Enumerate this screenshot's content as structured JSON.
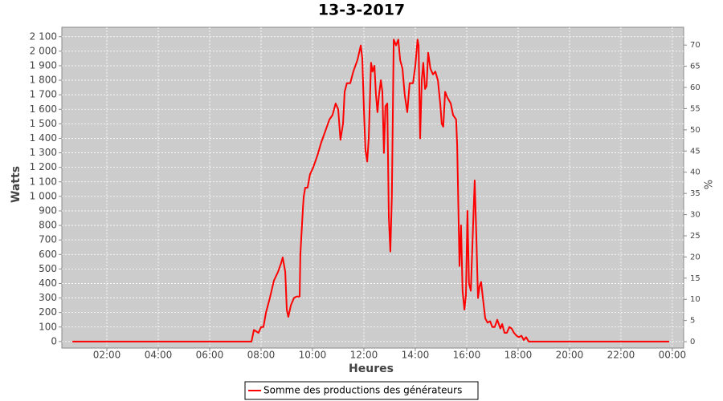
{
  "chart_data": {
    "type": "line",
    "title": "13-3-2017",
    "xlabel": "Heures",
    "ylabel": "Watts",
    "y2label": "%",
    "x": [
      0.66,
      7.63,
      7.72,
      7.9,
      8.0,
      8.09,
      8.19,
      8.34,
      8.5,
      8.66,
      8.78,
      8.84,
      8.94,
      9.0,
      9.06,
      9.16,
      9.28,
      9.38,
      9.5,
      9.53,
      9.63,
      9.66,
      9.72,
      9.81,
      9.9,
      10.03,
      10.19,
      10.34,
      10.5,
      10.66,
      10.78,
      10.9,
      11.0,
      11.09,
      11.19,
      11.25,
      11.34,
      11.47,
      11.59,
      11.75,
      11.88,
      11.94,
      12.0,
      12.06,
      12.13,
      12.19,
      12.28,
      12.34,
      12.41,
      12.47,
      12.53,
      12.59,
      12.66,
      12.72,
      12.78,
      12.84,
      12.91,
      12.97,
      13.03,
      13.09,
      13.16,
      13.25,
      13.34,
      13.41,
      13.5,
      13.59,
      13.69,
      13.78,
      13.91,
      14.0,
      14.09,
      14.13,
      14.19,
      14.25,
      14.31,
      14.38,
      14.44,
      14.5,
      14.59,
      14.69,
      14.78,
      14.88,
      14.97,
      15.03,
      15.09,
      15.16,
      15.25,
      15.38,
      15.47,
      15.59,
      15.63,
      15.72,
      15.78,
      15.84,
      15.91,
      15.97,
      16.03,
      16.09,
      16.16,
      16.25,
      16.31,
      16.38,
      16.44,
      16.5,
      16.56,
      16.63,
      16.72,
      16.81,
      16.91,
      17.0,
      17.09,
      17.19,
      17.25,
      17.31,
      17.38,
      17.47,
      17.56,
      17.66,
      17.75,
      17.84,
      17.94,
      18.03,
      18.13,
      18.22,
      18.31,
      18.41,
      23.88
    ],
    "series": [
      {
        "name": "Somme des productions des  générateurs",
        "color": "#ff0000",
        "values": [
          0,
          0,
          80,
          60,
          100,
          100,
          200,
          300,
          420,
          480,
          540,
          580,
          480,
          220,
          170,
          250,
          300,
          310,
          310,
          600,
          920,
          1000,
          1060,
          1060,
          1150,
          1200,
          1280,
          1370,
          1450,
          1530,
          1560,
          1640,
          1600,
          1390,
          1500,
          1720,
          1780,
          1780,
          1860,
          1940,
          2040,
          1950,
          1600,
          1320,
          1240,
          1400,
          1920,
          1860,
          1900,
          1700,
          1580,
          1700,
          1800,
          1720,
          1300,
          1620,
          1640,
          860,
          620,
          1000,
          2080,
          2040,
          2080,
          1940,
          1880,
          1700,
          1580,
          1780,
          1780,
          1900,
          2080,
          2040,
          1400,
          1800,
          1920,
          1740,
          1760,
          1990,
          1880,
          1840,
          1860,
          1800,
          1640,
          1500,
          1480,
          1720,
          1680,
          1640,
          1560,
          1530,
          1350,
          520,
          800,
          350,
          220,
          320,
          900,
          400,
          350,
          800,
          1110,
          700,
          300,
          380,
          410,
          300,
          160,
          130,
          140,
          100,
          100,
          150,
          120,
          90,
          120,
          60,
          60,
          100,
          90,
          60,
          40,
          30,
          40,
          10,
          30,
          0,
          0
        ]
      }
    ],
    "xlim": [
      0.25,
      24.44
    ],
    "ylim": [
      -45,
      2165
    ],
    "y2lim": [
      -1.5,
      74.2
    ],
    "xticks": [
      {
        "value": 2,
        "label": "02:00"
      },
      {
        "value": 4,
        "label": "04:00"
      },
      {
        "value": 6,
        "label": "06:00"
      },
      {
        "value": 8,
        "label": "08:00"
      },
      {
        "value": 10,
        "label": "10:00"
      },
      {
        "value": 12,
        "label": "12:00"
      },
      {
        "value": 14,
        "label": "14:00"
      },
      {
        "value": 16,
        "label": "16:00"
      },
      {
        "value": 18,
        "label": "18:00"
      },
      {
        "value": 20,
        "label": "20:00"
      },
      {
        "value": 22,
        "label": "22:00"
      },
      {
        "value": 24,
        "label": "00:00"
      }
    ],
    "yticks": [
      0,
      100,
      200,
      300,
      400,
      500,
      600,
      700,
      800,
      900,
      {
        "value": 1000,
        "label": "1 000"
      },
      {
        "value": 1100,
        "label": "1 100"
      },
      {
        "value": 1200,
        "label": "1 200"
      },
      {
        "value": 1300,
        "label": "1 300"
      },
      {
        "value": 1400,
        "label": "1 400"
      },
      {
        "value": 1500,
        "label": "1 500"
      },
      {
        "value": 1600,
        "label": "1 600"
      },
      {
        "value": 1700,
        "label": "1 700"
      },
      {
        "value": 1800,
        "label": "1 800"
      },
      {
        "value": 1900,
        "label": "1 900"
      },
      {
        "value": 2000,
        "label": "2 000"
      },
      {
        "value": 2100,
        "label": "2 100"
      }
    ],
    "y2ticks": [
      0,
      5,
      10,
      15,
      20,
      25,
      30,
      35,
      40,
      45,
      50,
      55,
      60,
      65,
      70
    ],
    "grid": true
  }
}
